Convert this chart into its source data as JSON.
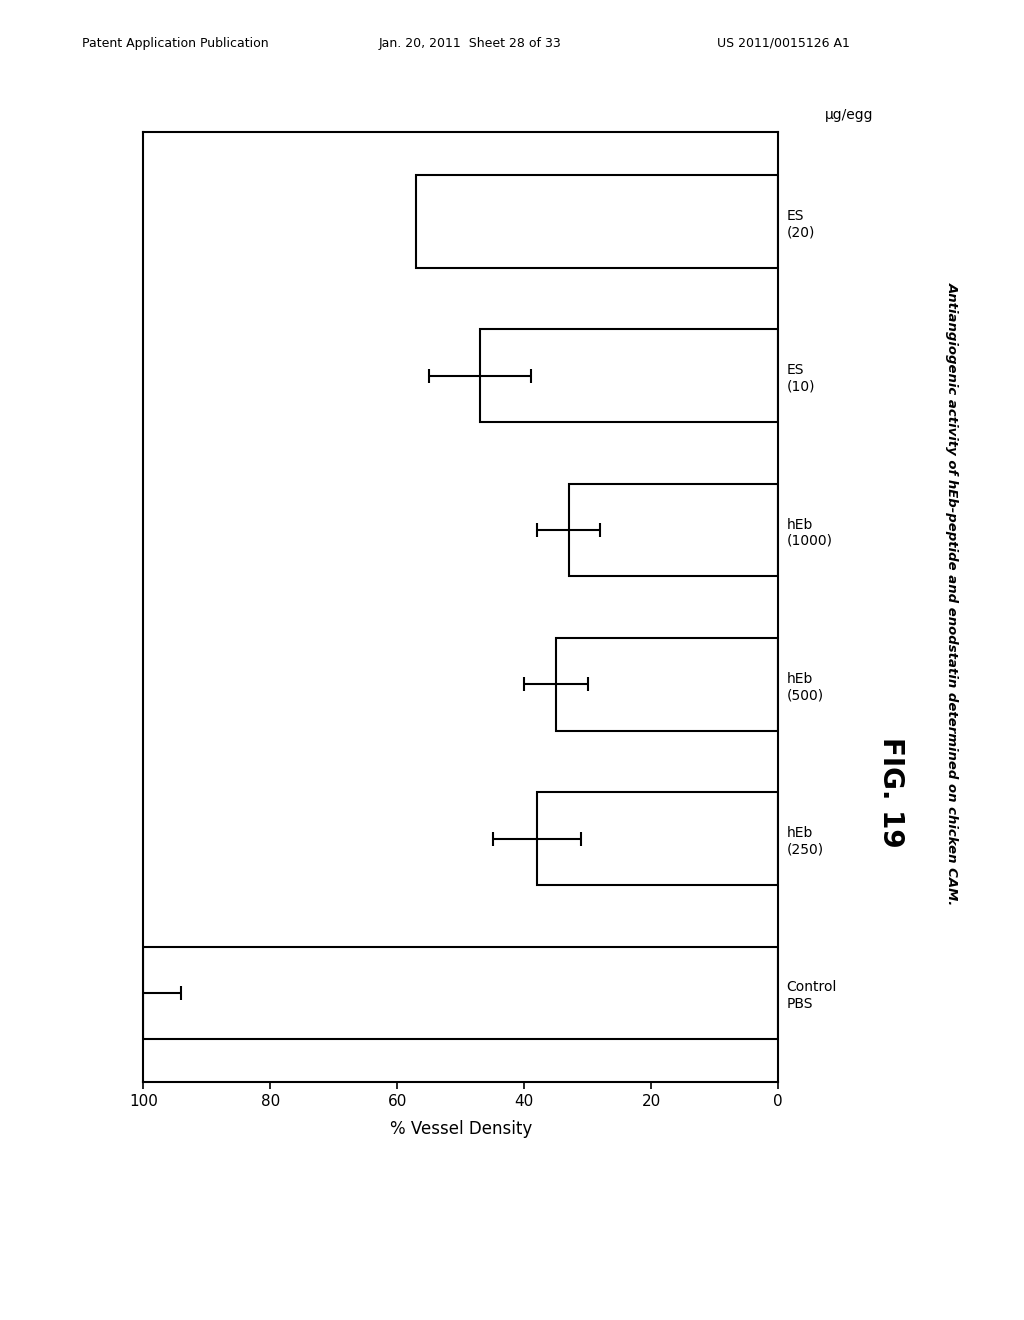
{
  "categories": [
    "Control\nPBS",
    "hEb\n(250)",
    "hEb\n(500)",
    "hEb\n(1000)",
    "ES\n(10)",
    "ES\n(20)"
  ],
  "values": [
    100,
    38,
    35,
    33,
    47,
    57
  ],
  "errors": [
    6,
    7,
    5,
    5,
    8,
    0
  ],
  "xlim": [
    0,
    100
  ],
  "xticks": [
    0,
    20,
    40,
    60,
    80,
    100
  ],
  "xlabel": "% Vessel Density",
  "title": "Antiangiogenic activity of hEb-peptide and enodstatin determined on chicken CAM.",
  "fig_label": "FIG. 19",
  "unit_label": "μg/egg",
  "bar_color": "white",
  "bar_edgecolor": "black",
  "background_color": "white",
  "bar_linewidth": 1.5,
  "header_left": "Patent Application Publication",
  "header_mid": "Jan. 20, 2011  Sheet 28 of 33",
  "header_right": "US 2011/0015126 A1",
  "figsize": [
    10.24,
    13.2
  ],
  "dpi": 100
}
